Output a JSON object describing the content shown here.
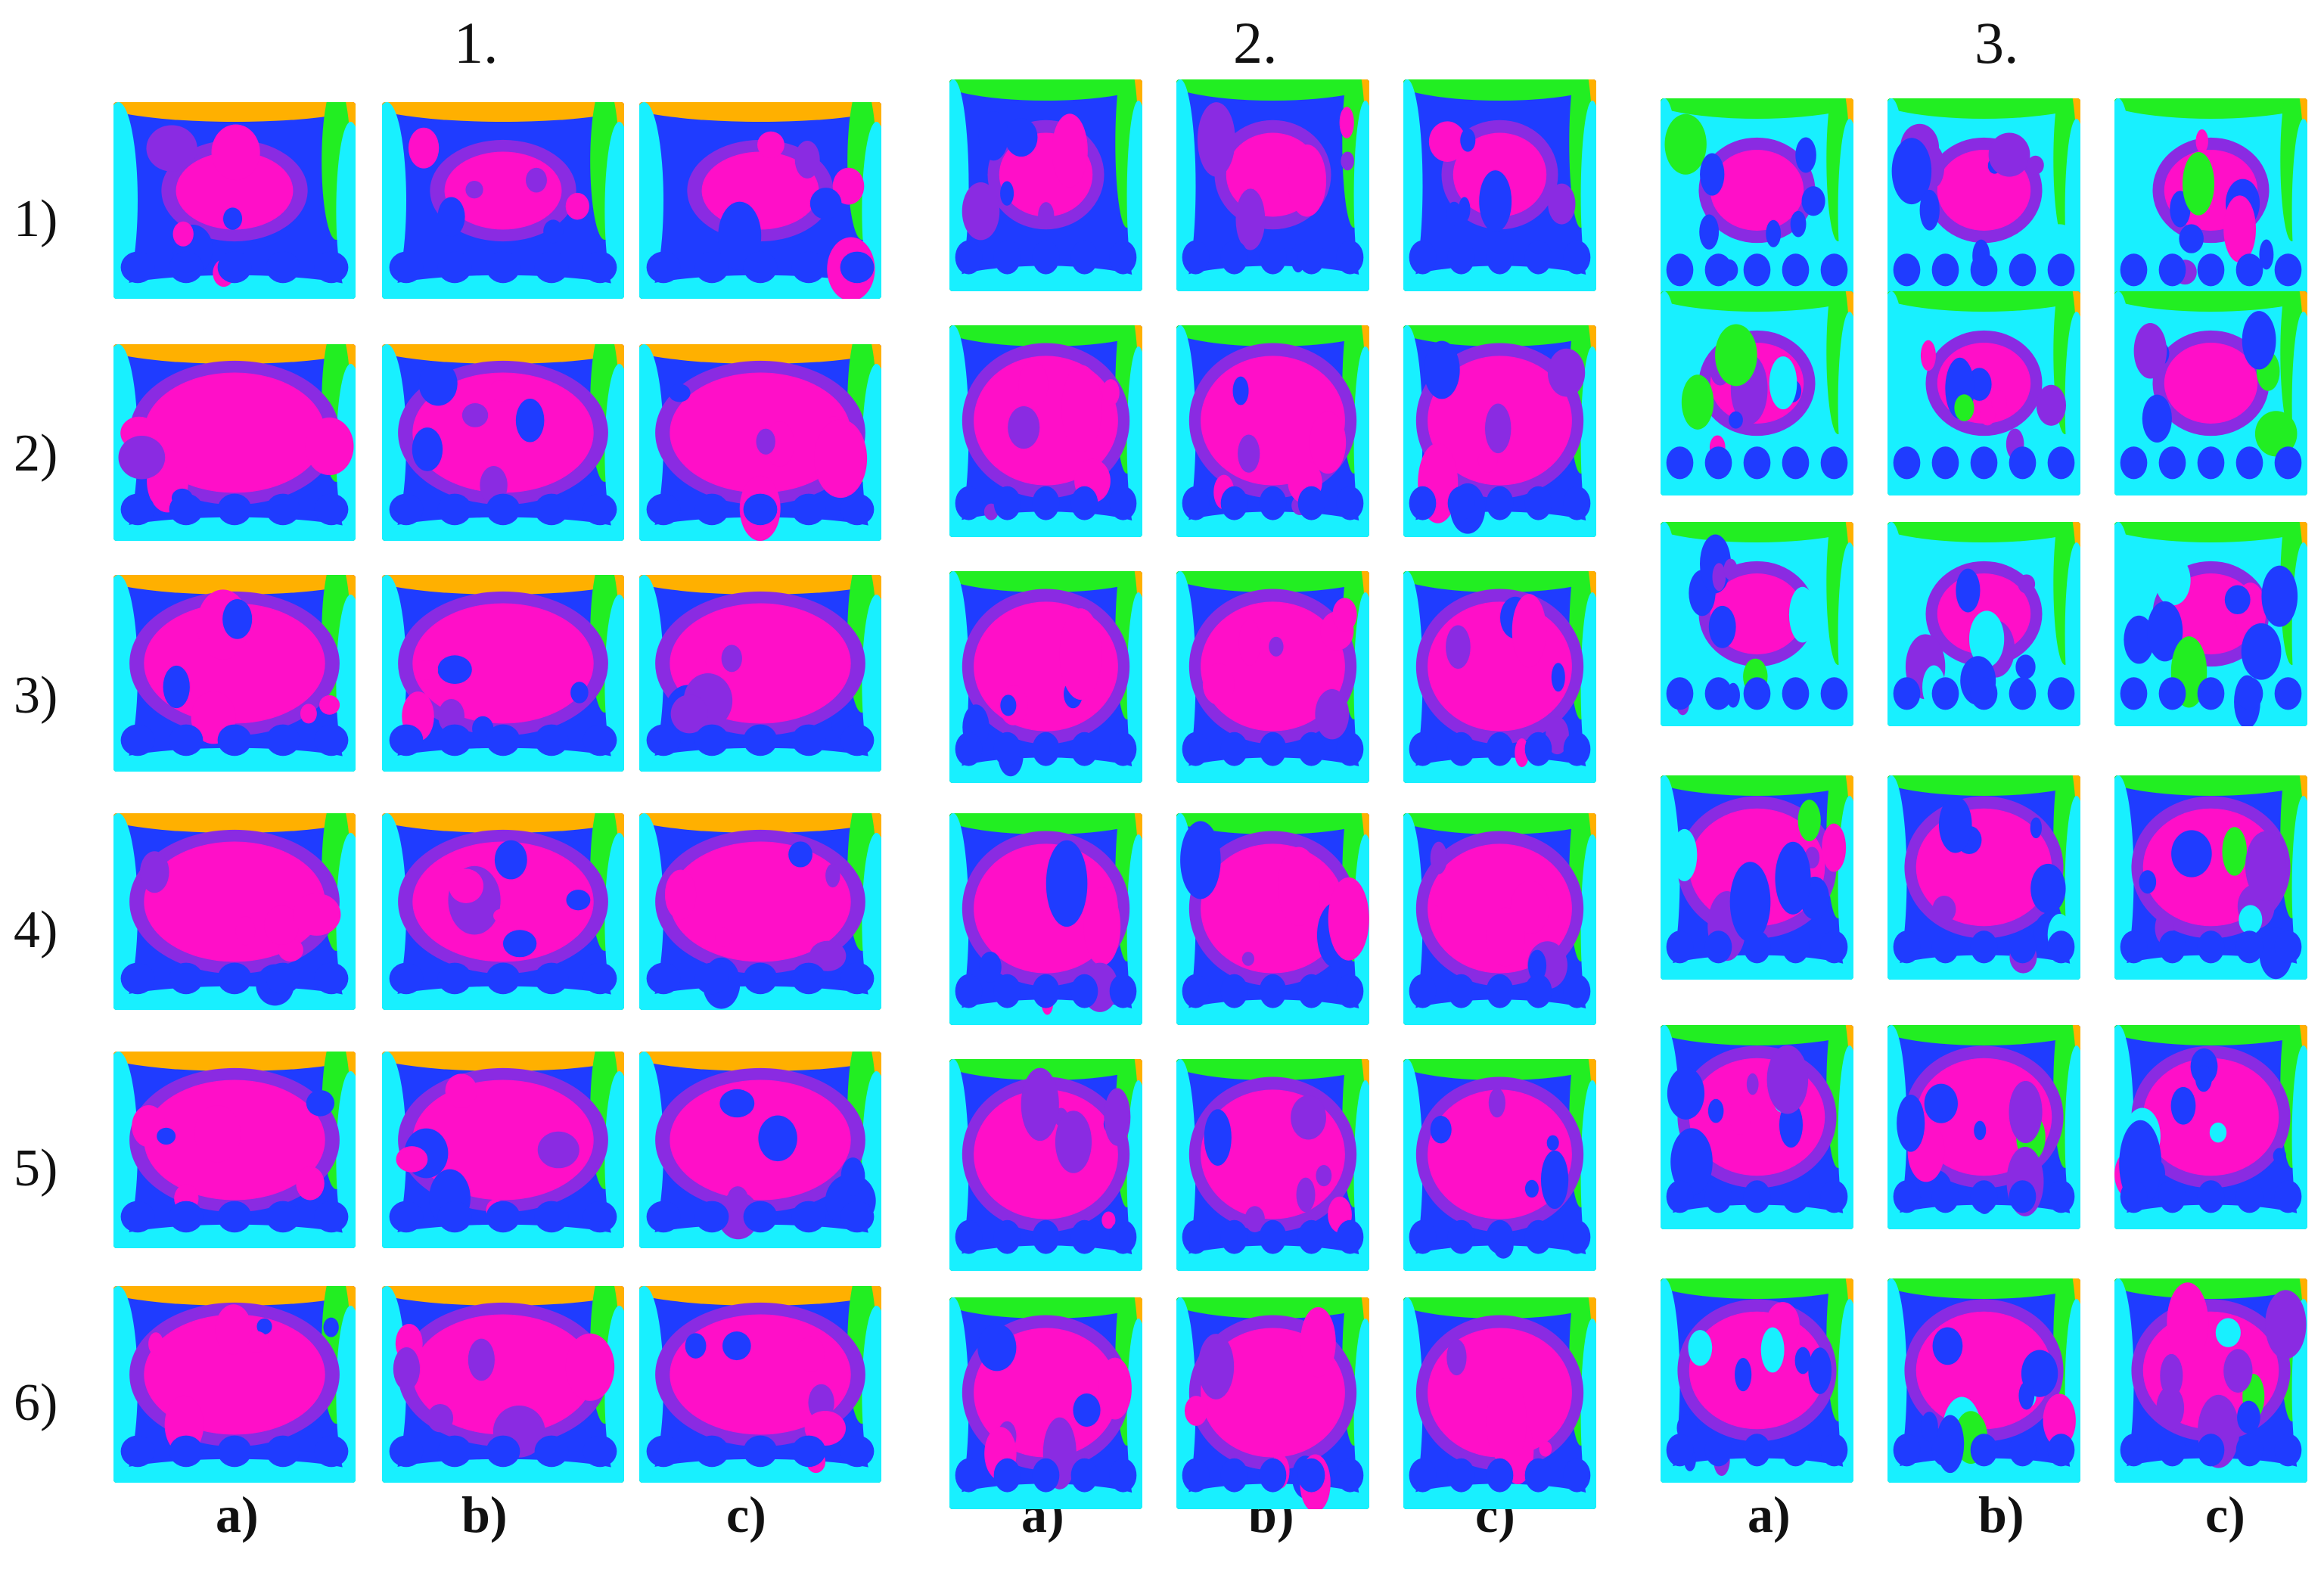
{
  "groups": [
    {
      "label": "1."
    },
    {
      "label": "2."
    },
    {
      "label": "3."
    }
  ],
  "rows": [
    "1)",
    "2)",
    "3)",
    "4)",
    "5)",
    "6)"
  ],
  "columns": [
    "a)",
    "b)",
    "c)"
  ],
  "palette": {
    "magenta": "#ff0fc8",
    "violet": "#8a2be2",
    "blue": "#1f3cff",
    "cyan": "#18f0ff",
    "green": "#22ee22",
    "yellow": "#ffb000",
    "red": "#ff1a1a"
  }
}
